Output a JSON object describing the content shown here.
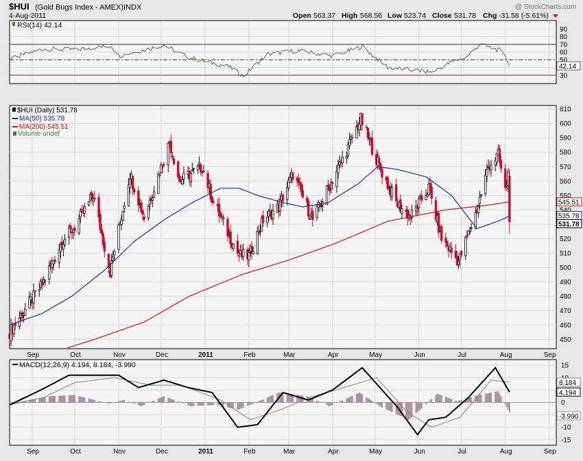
{
  "header": {
    "symbol": "$HUI",
    "name": "(Gold Bugs Index - AMEX)",
    "exchange": "INDX",
    "date": "4-Aug-2011",
    "watermark": "@ StockCharts.com",
    "open_label": "Open",
    "open": "563.37",
    "high_label": "High",
    "high": "568.56",
    "low_label": "Low",
    "low": "523.74",
    "close_label": "Close",
    "close": "531.78",
    "chg_label": "Chg",
    "chg": "-31.58 (-5.61%)"
  },
  "colors": {
    "background": "#e6e6e6",
    "panel": "#f4f4f4",
    "grid": "#d6d6d6",
    "up_candle": "#111111",
    "down_candle": "#c8102e",
    "ma50": "#1f2f9a",
    "ma200": "#e01010",
    "rsi_line": "#5a6e4a",
    "histogram": "#a98e9c",
    "macd_line": "#000000",
    "signal_line": "#888888"
  },
  "chart_data": [
    {
      "type": "line",
      "panel": "rsi",
      "legend": "RSI(14) 42.14",
      "current_value": "42.14",
      "ylim": [
        20,
        100
      ],
      "yticks": [
        "90",
        "80",
        "70",
        "60",
        "50",
        "40",
        "30"
      ],
      "reference_lines": [
        70,
        50,
        30
      ],
      "x_range": [
        "2010-08-16",
        "2011-09-06"
      ],
      "points": [
        [
          "2010-08-18",
          52
        ],
        [
          "2010-09-08",
          64
        ],
        [
          "2010-10-01",
          63
        ],
        [
          "2010-10-27",
          68
        ],
        [
          "2010-11-01",
          55
        ],
        [
          "2010-12-03",
          69
        ],
        [
          "2010-12-20",
          53
        ],
        [
          "2011-01-18",
          41
        ],
        [
          "2011-01-28",
          29
        ],
        [
          "2011-02-14",
          57
        ],
        [
          "2011-03-07",
          62
        ],
        [
          "2011-04-01",
          55
        ],
        [
          "2011-04-22",
          67
        ],
        [
          "2011-05-10",
          40
        ],
        [
          "2011-06-10",
          34
        ],
        [
          "2011-06-24",
          47
        ],
        [
          "2011-07-05",
          54
        ],
        [
          "2011-07-14",
          70
        ],
        [
          "2011-07-28",
          62
        ],
        [
          "2011-08-01",
          56
        ],
        [
          "2011-08-04",
          42
        ]
      ]
    },
    {
      "type": "candlestick",
      "panel": "price",
      "legend": [
        "$HUI (Daily) 531.78",
        "MA(50) 535.78",
        "MA(200) 545.51",
        "Volume undef"
      ],
      "ylim": [
        444,
        612
      ],
      "yticks": [
        450,
        460,
        470,
        480,
        490,
        500,
        510,
        520,
        530,
        540,
        550,
        560,
        570,
        580,
        590,
        600,
        610
      ],
      "price_tags": [
        "545.51",
        "535.78",
        "531.78"
      ],
      "x_range": [
        "2010-08-16",
        "2011-09-06"
      ],
      "x_tick_labels": [
        "Sep",
        "Oct",
        "Nov",
        "Dec",
        "2011",
        "Feb",
        "Mar",
        "Apr",
        "May",
        "Jun",
        "Jul",
        "Aug",
        "Sep"
      ],
      "close_path": [
        [
          "2010-08-16",
          455
        ],
        [
          "2010-09-08",
          488
        ],
        [
          "2010-09-22",
          518
        ],
        [
          "2010-10-01",
          528
        ],
        [
          "2010-10-14",
          550
        ],
        [
          "2010-10-26",
          497
        ],
        [
          "2010-11-09",
          565
        ],
        [
          "2010-11-19",
          535
        ],
        [
          "2010-12-07",
          587
        ],
        [
          "2010-12-14",
          560
        ],
        [
          "2010-12-30",
          570
        ],
        [
          "2011-01-07",
          545
        ],
        [
          "2011-01-25",
          508
        ],
        [
          "2011-02-01",
          508
        ],
        [
          "2011-02-11",
          533
        ],
        [
          "2011-02-22",
          542
        ],
        [
          "2011-03-04",
          565
        ],
        [
          "2011-03-18",
          533
        ],
        [
          "2011-04-08",
          575
        ],
        [
          "2011-04-21",
          603
        ],
        [
          "2011-05-05",
          568
        ],
        [
          "2011-05-16",
          545
        ],
        [
          "2011-05-26",
          535
        ],
        [
          "2011-06-08",
          555
        ],
        [
          "2011-06-17",
          520
        ],
        [
          "2011-06-29",
          504
        ],
        [
          "2011-07-12",
          540
        ],
        [
          "2011-07-20",
          570
        ],
        [
          "2011-07-27",
          578
        ],
        [
          "2011-08-01",
          553
        ],
        [
          "2011-08-03",
          565
        ],
        [
          "2011-08-04",
          531.78
        ]
      ],
      "last_candle": {
        "date": "2011-08-04",
        "open": 563.37,
        "high": 568.56,
        "low": 523.74,
        "close": 531.78
      },
      "ma50": [
        [
          "2010-08-16",
          460
        ],
        [
          "2010-09-08",
          468
        ],
        [
          "2010-09-29",
          480
        ],
        [
          "2010-10-22",
          498
        ],
        [
          "2010-11-12",
          518
        ],
        [
          "2010-12-03",
          533
        ],
        [
          "2010-12-23",
          545
        ],
        [
          "2011-01-12",
          555
        ],
        [
          "2011-01-25",
          555
        ],
        [
          "2011-02-07",
          550
        ],
        [
          "2011-02-25",
          545
        ],
        [
          "2011-03-11",
          542
        ],
        [
          "2011-03-29",
          545
        ],
        [
          "2011-04-19",
          558
        ],
        [
          "2011-05-03",
          570
        ],
        [
          "2011-05-17",
          568
        ],
        [
          "2011-06-06",
          563
        ],
        [
          "2011-06-24",
          550
        ],
        [
          "2011-07-12",
          527
        ],
        [
          "2011-07-21",
          530
        ],
        [
          "2011-07-29",
          533
        ],
        [
          "2011-08-04",
          535.78
        ]
      ],
      "ma200": [
        [
          "2010-09-13",
          440
        ],
        [
          "2010-10-15",
          450
        ],
        [
          "2010-11-19",
          462
        ],
        [
          "2010-12-21",
          480
        ],
        [
          "2011-01-27",
          495
        ],
        [
          "2011-03-01",
          505
        ],
        [
          "2011-04-04",
          517
        ],
        [
          "2011-05-10",
          532
        ],
        [
          "2011-06-20",
          540
        ],
        [
          "2011-07-18",
          543
        ],
        [
          "2011-08-04",
          545.51
        ]
      ]
    },
    {
      "type": "line",
      "panel": "macd",
      "legend": "MACD(12,26,9) 4.194, 8.184, -3.990",
      "values": [
        "8.184",
        "4.194",
        "-3.990"
      ],
      "ylim": [
        -17,
        17
      ],
      "yticks": [
        15,
        10,
        5,
        0,
        -5,
        -10,
        -15
      ],
      "x_range": [
        "2010-08-16",
        "2011-09-06"
      ],
      "x_tick_labels": [
        "Sep",
        "Oct",
        "Nov",
        "Dec",
        "2011",
        "Feb",
        "Mar",
        "Apr",
        "May",
        "Jun",
        "Jul",
        "Aug",
        "Sep"
      ],
      "series": [
        {
          "name": "MACD(12,26,9)",
          "points": [
            [
              "2010-08-16",
              -1
            ],
            [
              "2010-09-07",
              5
            ],
            [
              "2010-09-27",
              11
            ],
            [
              "2010-10-18",
              11
            ],
            [
              "2010-11-01",
              11
            ],
            [
              "2010-11-15",
              6
            ],
            [
              "2010-12-03",
              9
            ],
            [
              "2010-12-20",
              6
            ],
            [
              "2011-01-06",
              4
            ],
            [
              "2011-01-24",
              -10
            ],
            [
              "2011-02-07",
              -9
            ],
            [
              "2011-02-25",
              4
            ],
            [
              "2011-03-15",
              1
            ],
            [
              "2011-04-01",
              5
            ],
            [
              "2011-04-22",
              14
            ],
            [
              "2011-05-17",
              -2
            ],
            [
              "2011-05-31",
              -13
            ],
            [
              "2011-06-08",
              -7
            ],
            [
              "2011-06-20",
              -6
            ],
            [
              "2011-07-06",
              2
            ],
            [
              "2011-07-25",
              14
            ],
            [
              "2011-08-04",
              4.194
            ]
          ]
        },
        {
          "name": "signal",
          "points": [
            [
              "2010-08-16",
              -1
            ],
            [
              "2010-09-09",
              2
            ],
            [
              "2010-10-01",
              8
            ],
            [
              "2010-10-29",
              10
            ],
            [
              "2010-11-23",
              7
            ],
            [
              "2010-12-15",
              7
            ],
            [
              "2011-01-12",
              1
            ],
            [
              "2011-02-02",
              -7
            ],
            [
              "2011-02-23",
              -3
            ],
            [
              "2011-03-16",
              2
            ],
            [
              "2011-04-15",
              7
            ],
            [
              "2011-05-02",
              10
            ],
            [
              "2011-05-24",
              -4
            ],
            [
              "2011-06-10",
              -10
            ],
            [
              "2011-06-30",
              -6
            ],
            [
              "2011-07-22",
              9
            ],
            [
              "2011-08-04",
              8.184
            ]
          ]
        }
      ],
      "histogram": [
        [
          "2010-08-16",
          -0.5
        ],
        [
          "2010-09-13",
          2.5
        ],
        [
          "2010-10-01",
          3
        ],
        [
          "2010-10-25",
          -0.5
        ],
        [
          "2010-11-05",
          1
        ],
        [
          "2010-11-17",
          -1.5
        ],
        [
          "2010-12-03",
          2.5
        ],
        [
          "2010-12-22",
          -1.5
        ],
        [
          "2011-01-10",
          -1
        ],
        [
          "2011-01-24",
          -3
        ],
        [
          "2011-02-08",
          0.5
        ],
        [
          "2011-02-22",
          4
        ],
        [
          "2011-03-14",
          2.5
        ],
        [
          "2011-03-30",
          -1.5
        ],
        [
          "2011-04-20",
          4
        ],
        [
          "2011-05-06",
          -2
        ],
        [
          "2011-05-25",
          -7
        ],
        [
          "2011-06-14",
          3.5
        ],
        [
          "2011-06-28",
          0.5
        ],
        [
          "2011-07-13",
          3
        ],
        [
          "2011-07-27",
          4.5
        ],
        [
          "2011-08-04",
          -3.99
        ]
      ]
    }
  ]
}
